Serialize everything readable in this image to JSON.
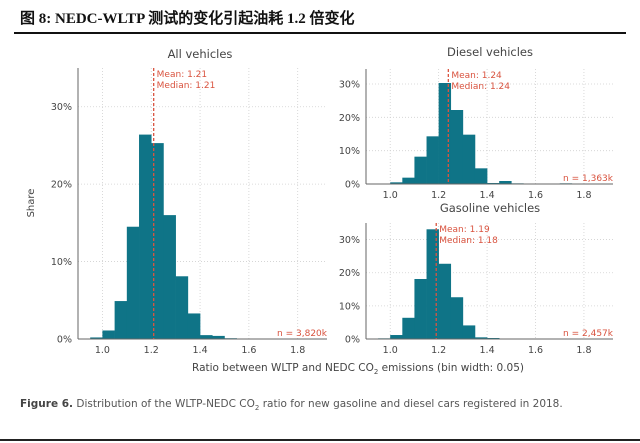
{
  "header": {
    "title": "图  8:  NEDC-WLTP 测试的变化引起油耗 1.2 倍变化"
  },
  "caption": {
    "label": "Figure 6.",
    "text_before": " Distribution of the WLTP-NEDC CO",
    "subscript": "2",
    "text_after": " ratio for new gasoline and diesel cars registered in 2018."
  },
  "shared": {
    "ylabel": "Share",
    "xlabel_before": "Ratio between WLTP and NEDC CO",
    "xlabel_sub": "2",
    "xlabel_after": " emissions (bin width: 0.05)"
  },
  "colors": {
    "bar": "#0f7487",
    "annotation": "#d9533f",
    "text": "#444444",
    "grid": "#d0d0d0"
  },
  "chart_data": [
    {
      "type": "bar",
      "title": "All vehicles",
      "bin_width": 0.05,
      "bin_starts": [
        0.95,
        1.0,
        1.05,
        1.1,
        1.15,
        1.2,
        1.25,
        1.3,
        1.35,
        1.4,
        1.45,
        1.5
      ],
      "values": [
        0.2,
        1.1,
        4.9,
        14.5,
        26.4,
        25.3,
        16.0,
        8.1,
        3.3,
        0.5,
        0.4,
        0.1
      ],
      "mean": 1.21,
      "median": 1.21,
      "mean_label": "Mean: 1.21",
      "median_label": "Median: 1.21",
      "n_label": "n = 3,820k",
      "xticks": [
        "1.0",
        "1.2",
        "1.4",
        "1.6",
        "1.8"
      ],
      "xlim": [
        0.9,
        1.92
      ],
      "yticks": [
        "0%",
        "10%",
        "20%",
        "30%"
      ],
      "ylim": [
        0,
        35
      ],
      "grid": true
    },
    {
      "type": "bar",
      "title": "Diesel vehicles",
      "bin_width": 0.05,
      "bin_starts": [
        1.0,
        1.05,
        1.1,
        1.15,
        1.2,
        1.25,
        1.3,
        1.35,
        1.4,
        1.45,
        1.5,
        1.7
      ],
      "values": [
        0.5,
        1.9,
        8.2,
        14.3,
        30.3,
        22.2,
        14.8,
        4.7,
        0.3,
        0.9,
        0.2,
        0.2
      ],
      "mean": 1.24,
      "median": 1.24,
      "mean_label": "Mean: 1.24",
      "median_label": "Median: 1.24",
      "n_label": "n = 1,363k",
      "xticks": [
        "1.0",
        "1.2",
        "1.4",
        "1.6",
        "1.8"
      ],
      "xlim": [
        0.9,
        1.92
      ],
      "yticks": [
        "0%",
        "10%",
        "20%",
        "30%"
      ],
      "ylim": [
        0,
        34.5
      ],
      "grid": true
    },
    {
      "type": "bar",
      "title": "Gasoline vehicles",
      "bin_width": 0.05,
      "bin_starts": [
        0.95,
        1.0,
        1.05,
        1.1,
        1.15,
        1.2,
        1.25,
        1.3,
        1.35,
        1.4,
        1.45
      ],
      "values": [
        0.2,
        1.2,
        6.4,
        18.1,
        33.1,
        22.7,
        12.6,
        4.1,
        0.5,
        0.3,
        0.1
      ],
      "mean": 1.19,
      "median": 1.18,
      "mean_label": "Mean: 1.19",
      "median_label": "Median: 1.18",
      "n_label": "n = 2,457k",
      "xticks": [
        "1.0",
        "1.2",
        "1.4",
        "1.6",
        "1.8"
      ],
      "xlim": [
        0.9,
        1.92
      ],
      "yticks": [
        "0%",
        "10%",
        "20%",
        "30%"
      ],
      "ylim": [
        0,
        35
      ],
      "grid": true
    }
  ]
}
